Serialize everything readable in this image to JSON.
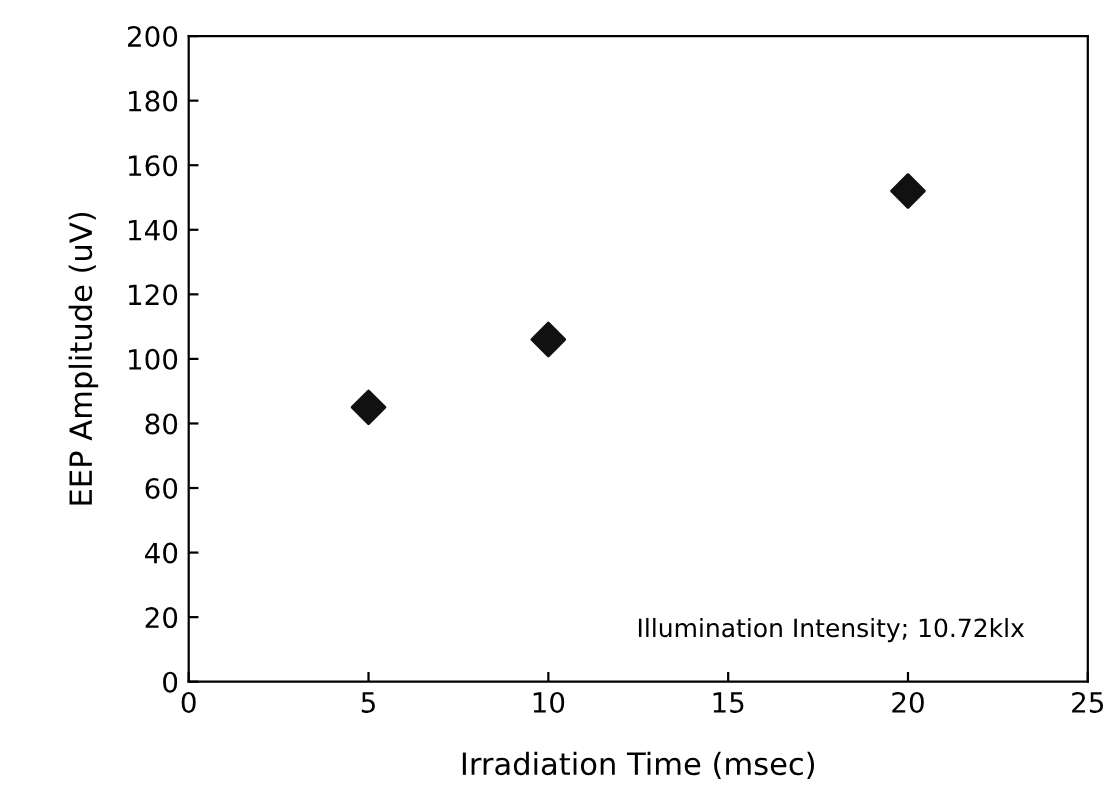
{
  "chart_data": {
    "type": "scatter",
    "xlabel": "Irradiation Time (msec)",
    "ylabel": "EEP Amplitude (uV)",
    "x": [
      5,
      10,
      20
    ],
    "series": [
      {
        "color": "#111111",
        "values": [
          85,
          106,
          152
        ]
      }
    ],
    "marker": "diamond",
    "xlim": [
      0,
      25
    ],
    "xticks": [
      0,
      5,
      10,
      15,
      20,
      25
    ],
    "ylim": [
      0,
      200
    ],
    "yticks": [
      0,
      20,
      40,
      60,
      80,
      100,
      120,
      140,
      160,
      180,
      200
    ],
    "grid": false,
    "legend": false,
    "annotations": [
      "Illumination Intensity; 10.72klx"
    ]
  }
}
